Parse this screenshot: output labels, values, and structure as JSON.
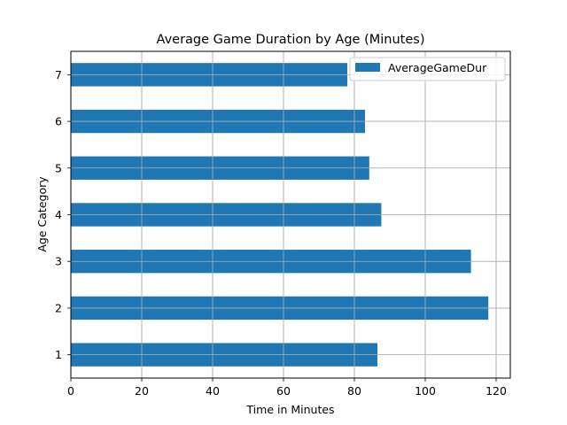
{
  "chart_data": {
    "type": "bar",
    "orientation": "horizontal",
    "title": "Average Game Duration by Age (Minutes)",
    "xlabel": "Time in Minutes",
    "ylabel": "Age Category",
    "categories": [
      "1",
      "2",
      "3",
      "4",
      "5",
      "6",
      "7"
    ],
    "series": [
      {
        "name": "AverageGameDur",
        "color": "#1f77b4",
        "values": [
          86.5,
          117.8,
          112.9,
          87.6,
          84.2,
          83.0,
          78.0
        ]
      }
    ],
    "xlim": [
      0,
      124
    ],
    "xticks": [
      0,
      20,
      40,
      60,
      80,
      100,
      120
    ],
    "grid": true,
    "legend_position": "top-right"
  }
}
